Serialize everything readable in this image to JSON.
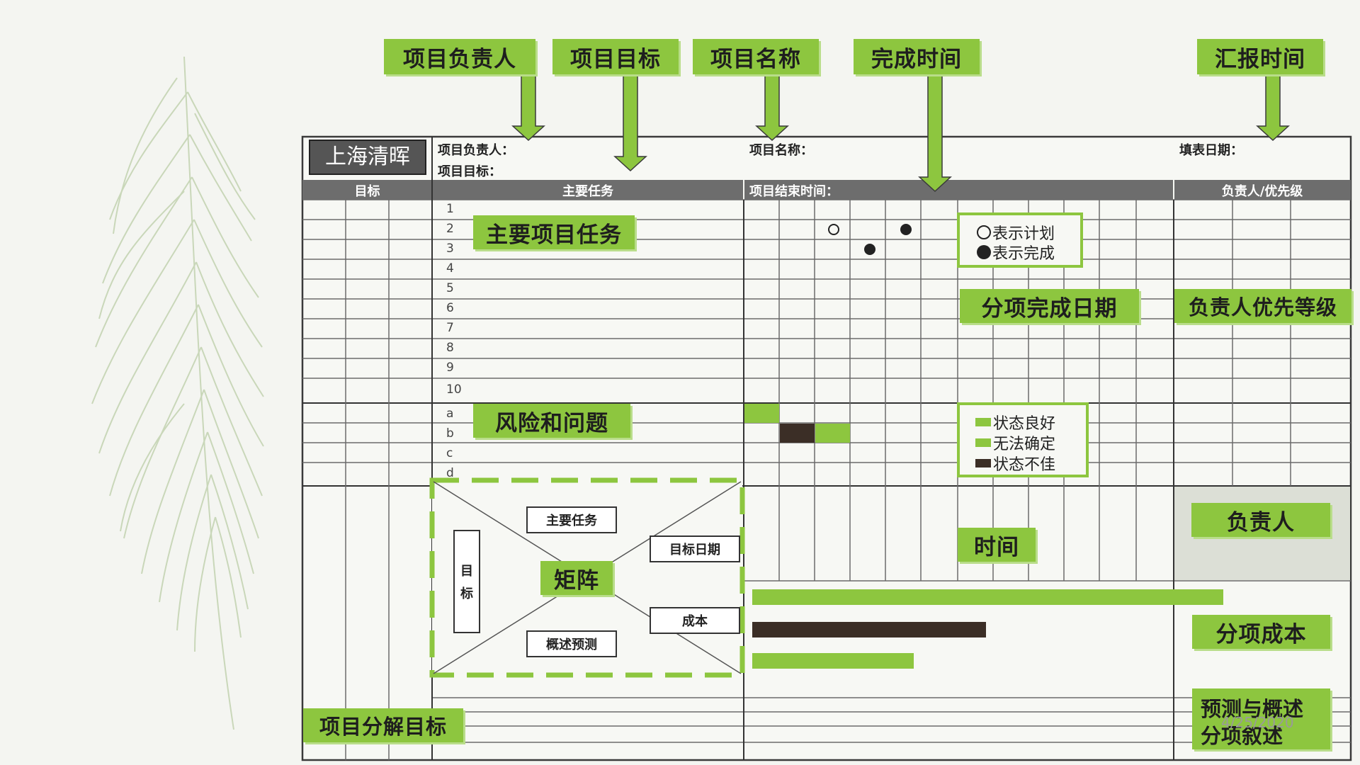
{
  "callouts": {
    "leader": "项目负责人",
    "goal": "项目目标",
    "name": "项目名称",
    "finish_time": "完成时间",
    "report_time": "汇报时间",
    "main_tasks": "主要项目任务",
    "sub_finish_date": "分项完成日期",
    "owner_priority": "负责人优先等级",
    "risk": "风险和问题",
    "time": "时间",
    "owner": "负责人",
    "matrix": "矩阵",
    "sub_cost": "分项成本",
    "forecast_line1": "预测与概述",
    "forecast_line2": "分项叙述",
    "breakdown": "项目分解目标"
  },
  "form": {
    "logo": "上海清晖",
    "leader_label": "项目负责人：",
    "goal_label": "项目目标：",
    "name_label": "项目名称：",
    "fill_date_label": "填表日期：",
    "col_goal": "目标",
    "col_main_task": "主要任务",
    "col_end_time": "项目结束时间：",
    "col_owner_priority": "负责人/优先级",
    "task_rows": [
      "1",
      "2",
      "3",
      "4",
      "5",
      "6",
      "7",
      "8",
      "9",
      "10"
    ],
    "risk_rows": [
      "a",
      "b",
      "c",
      "d"
    ]
  },
  "legend_plan": {
    "plan": "表示计划",
    "done": "表示完成"
  },
  "legend_status": {
    "good": "状态良好",
    "unsure": "无法确定",
    "bad": "状态不佳"
  },
  "matrix": {
    "main_task": "主要任务",
    "target_date": "目标日期",
    "goal_v1": "目",
    "goal_v2": "标",
    "cost": "成本",
    "forecast": "概述预测"
  },
  "date": "4/25/2020",
  "colors": {
    "accent": "#8dc63f",
    "dark": "#3b2e26",
    "band": "#6d6d6d"
  }
}
